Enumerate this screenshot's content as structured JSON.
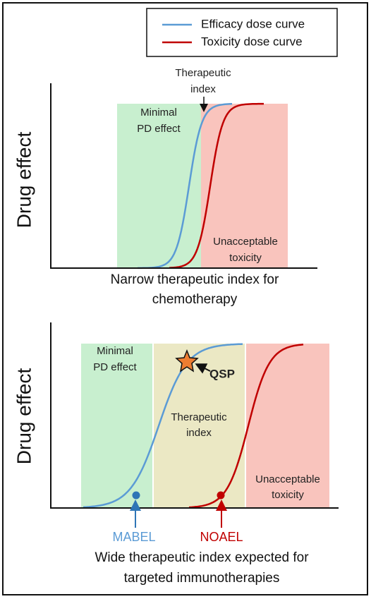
{
  "legend": {
    "items": [
      "Efficacy dose curve",
      "Toxicity dose curve"
    ]
  },
  "panels": [
    {
      "y_label": "Drug effect",
      "minimal": [
        "Minimal",
        "PD effect"
      ],
      "therapeutic": [
        "Therapeutic",
        "index"
      ],
      "toxic": [
        "Unacceptable",
        "toxicity"
      ],
      "caption": [
        "Narrow therapeutic index for",
        "chemotherapy"
      ]
    },
    {
      "y_label": "Drug effect",
      "minimal": [
        "Minimal",
        "PD effect"
      ],
      "therapeutic": [
        "Therapeutic",
        "index"
      ],
      "toxic": [
        "Unacceptable",
        "toxicity"
      ],
      "qsp": "QSP",
      "mabel": "MABEL",
      "noael": "NOAEL",
      "caption": [
        "Wide therapeutic index expected for",
        "targeted immunotherapies"
      ]
    }
  ]
}
